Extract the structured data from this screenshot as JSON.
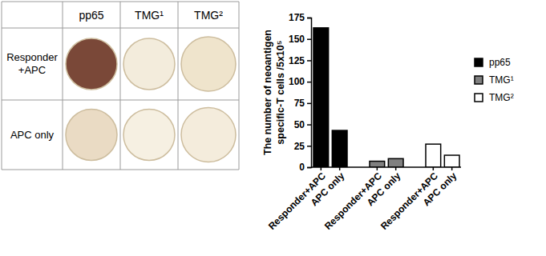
{
  "table": {
    "columns": [
      "pp65",
      "TMG¹",
      "TMG²"
    ],
    "rows": [
      {
        "label": "Responder +APC",
        "cells": [
          "#7a4838",
          "#f3ecdc",
          "#efe4cc"
        ]
      },
      {
        "label": "APC only",
        "cells": [
          "#eadbc4",
          "#f6f0e2",
          "#f4ecdc"
        ]
      }
    ]
  },
  "chart_data": {
    "type": "bar",
    "ylabel": "The number of neoantigen specific-T cells /5x10⁵",
    "categories": [
      "Responder+APC",
      "APC only",
      "Responder+APC",
      "APC only",
      "Responder+APC",
      "APC only"
    ],
    "series": [
      {
        "name": "pp65",
        "color": "#000000",
        "values": [
          163,
          43,
          null,
          null,
          null,
          null
        ]
      },
      {
        "name": "TMG¹",
        "color": "#808080",
        "values": [
          null,
          null,
          7,
          10,
          null,
          null
        ]
      },
      {
        "name": "TMG²",
        "color": "#ffffff",
        "values": [
          null,
          null,
          null,
          null,
          27,
          14
        ]
      }
    ],
    "ylim": [
      0,
      175
    ],
    "yticks": [
      0,
      25,
      50,
      75,
      100,
      125,
      150,
      175
    ],
    "grid": false,
    "legend": "right"
  }
}
